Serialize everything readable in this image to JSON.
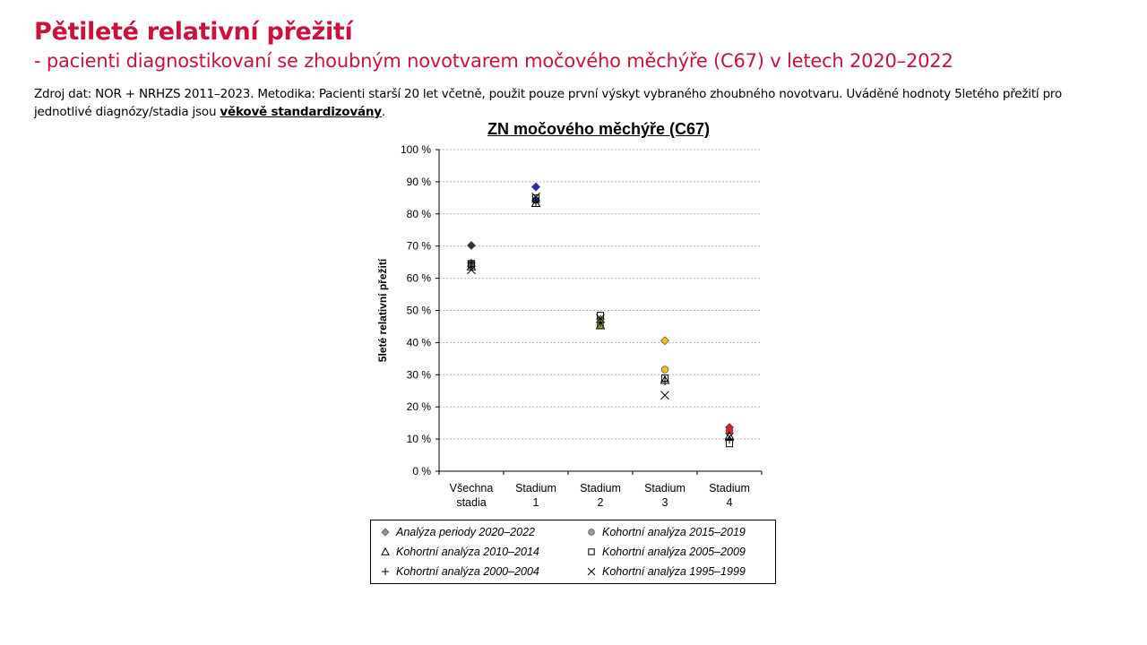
{
  "page": {
    "title": "Pětileté relativní přežití",
    "subtitle": "- pacienti diagnostikovaní se zhoubným novotvarem močového měchýře (C67) v letech 2020–2022",
    "source_text": "Zdroj dat: NOR + NRHZS 2011–2023. Metodika: Pacienti starší 20 let včetně, použit pouze první výskyt vybraného zhoubného novotvaru. Uváděné hodnoty 5letého přežití pro jednotlivé diagnózy/stadia jsou ",
    "source_emphasis": "věkově standardizovány",
    "source_end": "."
  },
  "chart_data": {
    "type": "scatter",
    "title": "ZN močového měchýře (C67)",
    "ylabel": "5leté relativní přežití",
    "xlabel": "",
    "ylim": [
      0,
      100
    ],
    "y_ticks": [
      "0 %",
      "10 %",
      "20 %",
      "30 %",
      "40 %",
      "50 %",
      "60 %",
      "70 %",
      "80 %",
      "90 %",
      "100 %"
    ],
    "grid": true,
    "categories": [
      "Všechna stadia",
      "Stadium 1",
      "Stadium 2",
      "Stadium 3",
      "Stadium 4"
    ],
    "category_lines": [
      [
        "Všechna",
        "stadia"
      ],
      [
        "Stadium",
        "1"
      ],
      [
        "Stadium",
        "2"
      ],
      [
        "Stadium",
        "3"
      ],
      [
        "Stadium",
        "4"
      ]
    ],
    "category_colors": [
      "#333333",
      "#1f2fbf",
      "#8fb82a",
      "#f2c21a",
      "#e02020"
    ],
    "legend_position": "bottom",
    "series": [
      {
        "name": "Analýza periody 2020–2022",
        "marker": "diamond",
        "filled": true,
        "values": [
          70.2,
          88.4,
          47.2,
          40.6,
          13.6
        ]
      },
      {
        "name": "Kohortní analýza 2015–2019",
        "marker": "circle",
        "filled": true,
        "values": [
          64.0,
          84.3,
          45.4,
          31.6,
          12.6
        ]
      },
      {
        "name": "Kohortní analýza 2010–2014",
        "marker": "triangle",
        "filled": false,
        "values": [
          63.6,
          83.3,
          45.3,
          28.3,
          11.0
        ]
      },
      {
        "name": "Kohortní analýza 2005–2009",
        "marker": "square",
        "filled": false,
        "values": [
          64.5,
          84.9,
          48.4,
          28.9,
          8.6
        ]
      },
      {
        "name": "Kohortní analýza 2000–2004",
        "marker": "plus",
        "filled": false,
        "values": [
          64.8,
          83.6,
          46.2,
          28.0,
          9.8
        ]
      },
      {
        "name": "Kohortní analýza 1995–1999",
        "marker": "x",
        "filled": false,
        "values": [
          62.6,
          85.3,
          47.5,
          23.6,
          10.7
        ]
      }
    ]
  }
}
